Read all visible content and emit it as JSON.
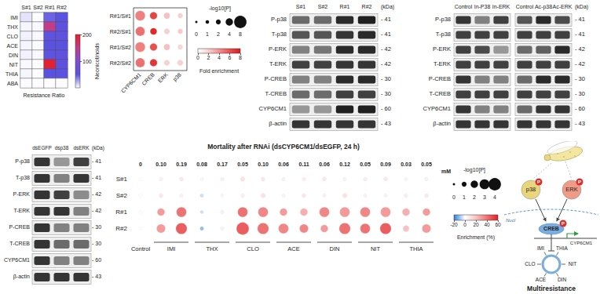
{
  "chart_data": [
    {
      "type": "heatmap",
      "columns": [
        "S#1",
        "S#2",
        "R#1",
        "R#2"
      ],
      "rows": [
        "IMI",
        "THX",
        "CLO",
        "ACE",
        "DIN",
        "NIT",
        "THIA",
        "ABA"
      ],
      "values": [
        [
          8,
          1,
          45,
          50
        ],
        [
          3,
          2,
          150,
          55
        ],
        [
          4,
          2,
          55,
          55
        ],
        [
          3,
          1,
          50,
          50
        ],
        [
          4,
          2,
          55,
          55
        ],
        [
          2,
          1,
          195,
          55
        ],
        [
          3,
          1,
          50,
          50
        ],
        [
          1,
          1,
          1,
          1
        ]
      ],
      "xlabel": "Resistance Ratio",
      "ylabel": "Neonicotinoids",
      "colorbar": {
        "lim": [
          0,
          200
        ],
        "ticks": [
          100,
          200
        ],
        "colors": [
          "#ffffff",
          "#5a52e0",
          "#7e4fd2",
          "#c23c8c",
          "#e81e28"
        ]
      }
    },
    {
      "type": "bubble",
      "x": [
        "CYP6CM1",
        "CREB",
        "ERK",
        "p38"
      ],
      "y": [
        "R#1/S#1",
        "R#2/S#1",
        "R#1/S#2",
        "R#2/S#2"
      ],
      "fold_enrichment": [
        [
          4.5,
          6.5,
          2.5,
          2
        ],
        [
          5,
          7.5,
          2,
          2.2
        ],
        [
          4.5,
          6,
          2.5,
          1.8
        ],
        [
          5,
          7,
          2,
          2
        ]
      ],
      "neg_log10_p": [
        [
          6,
          4,
          3,
          2
        ],
        [
          5.5,
          3.5,
          2.5,
          2
        ],
        [
          6,
          4,
          3,
          2
        ],
        [
          5.5,
          4,
          2.5,
          2.5
        ]
      ],
      "size_legend": {
        "title": "-log10[P]",
        "values": [
          0,
          1,
          2,
          4,
          8
        ]
      },
      "colorbar": {
        "title": "Fold enrichment",
        "lim": [
          0,
          8
        ],
        "ticks": [
          0,
          2,
          4,
          6,
          8
        ],
        "colors": [
          "#ffffff",
          "#f9d0d0",
          "#f29090",
          "#e85050",
          "#d81e1e"
        ]
      }
    },
    {
      "type": "bubble",
      "title": "Mortality after RNAi (dsCYP6CM1/dsEGFP, 24 h)",
      "x_unit": "mM",
      "groups": [
        {
          "label": "Control",
          "concentrations": [
            "0"
          ]
        },
        {
          "label": "IMI",
          "concentrations": [
            "0.10",
            "0.19"
          ]
        },
        {
          "label": "THX",
          "concentrations": [
            "0.08",
            "0.17"
          ]
        },
        {
          "label": "CLO",
          "concentrations": [
            "0.05",
            "0.10"
          ]
        },
        {
          "label": "ACE",
          "concentrations": [
            "0.06",
            "0.11"
          ]
        },
        {
          "label": "DIN",
          "concentrations": [
            "0.06",
            "0.12"
          ]
        },
        {
          "label": "NIT",
          "concentrations": [
            "0.05",
            "0.09"
          ]
        },
        {
          "label": "THIA",
          "concentrations": [
            "0.03",
            "0.05"
          ]
        }
      ],
      "series": [
        {
          "name": "S#1",
          "enrichment": [
            0,
            5,
            8,
            3,
            5,
            10,
            8,
            5,
            6,
            8,
            5,
            6,
            8,
            4,
            5
          ],
          "neg_log10_p": [
            0.3,
            0.5,
            0.6,
            0.3,
            0.5,
            0.8,
            0.6,
            0.4,
            0.5,
            0.6,
            0.4,
            0.5,
            0.6,
            0.3,
            0.4
          ]
        },
        {
          "name": "S#2",
          "enrichment": [
            0,
            8,
            5,
            -5,
            3,
            6,
            10,
            4,
            8,
            5,
            10,
            5,
            4,
            6,
            8
          ],
          "neg_log10_p": [
            0.3,
            0.6,
            0.5,
            0.5,
            0.3,
            0.6,
            0.8,
            0.4,
            0.6,
            0.4,
            0.8,
            0.4,
            0.4,
            0.5,
            0.6
          ]
        },
        {
          "name": "R#1",
          "enrichment": [
            0,
            30,
            40,
            -5,
            5,
            40,
            35,
            30,
            25,
            35,
            30,
            35,
            30,
            25,
            30
          ],
          "neg_log10_p": [
            0.3,
            2,
            3,
            0.4,
            0.5,
            3,
            3,
            2,
            2,
            3,
            3,
            3,
            3,
            2,
            2
          ]
        },
        {
          "name": "R#2",
          "enrichment": [
            0,
            30,
            45,
            -10,
            5,
            45,
            40,
            35,
            35,
            30,
            40,
            40,
            45,
            20,
            30
          ],
          "neg_log10_p": [
            0.3,
            2.5,
            3.5,
            0.6,
            0.5,
            4,
            3.5,
            3,
            2.5,
            2,
            3.5,
            3,
            3.5,
            1.5,
            2.5
          ]
        }
      ],
      "size_legend": {
        "title": "-log10[P]",
        "values": [
          0,
          1,
          2,
          3,
          4
        ]
      },
      "colorbar": {
        "title": "Enrichment (%)",
        "lim": [
          -20,
          60
        ],
        "ticks": [
          -20,
          0,
          20,
          40,
          60
        ],
        "colors": [
          "#2f7fd6",
          "#ffffff",
          "#f8c2c2",
          "#ef7272",
          "#e0202a"
        ]
      }
    }
  ],
  "blots": [
    {
      "lanes": [
        [
          "S#1",
          "S#2",
          "R#1",
          "R#2"
        ]
      ],
      "unit": "(kDa)",
      "rows": [
        {
          "label": "P-p38",
          "kda": 41,
          "intensity": [
            0.6,
            0.6,
            0.9,
            0.95
          ]
        },
        {
          "label": "T-p38",
          "kda": 41,
          "intensity": [
            0.7,
            0.7,
            0.85,
            0.9
          ]
        },
        {
          "label": "P-ERK",
          "kda": 42,
          "intensity": [
            0.5,
            0.55,
            0.9,
            0.9
          ]
        },
        {
          "label": "T-ERK",
          "kda": 42,
          "intensity": [
            0.8,
            0.8,
            0.85,
            0.85
          ]
        },
        {
          "label": "P-CREB",
          "kda": 30,
          "intensity": [
            0.5,
            0.5,
            0.9,
            0.9
          ]
        },
        {
          "label": "T-CREB",
          "kda": 30,
          "intensity": [
            0.6,
            0.6,
            0.8,
            0.8
          ]
        },
        {
          "label": "CYP6CM1",
          "kda": 60,
          "intensity": [
            0.4,
            0.4,
            0.95,
            0.95
          ]
        },
        {
          "label": "β-actin",
          "kda": 43,
          "intensity": [
            0.85,
            0.85,
            0.85,
            0.85
          ]
        }
      ]
    },
    {
      "lanes": [
        [
          "Control",
          "In-P38",
          "In-ERK"
        ],
        [
          "Control",
          "Ac-p38",
          "Ac-ERK"
        ]
      ],
      "unit": "(kDa)",
      "rows": [
        {
          "label": "P-p38",
          "kda": 41,
          "intensity": [
            0.85,
            0.5,
            0.8,
            0.7,
            0.9,
            0.75
          ]
        },
        {
          "label": "T-p38",
          "kda": 41,
          "intensity": [
            0.8,
            0.8,
            0.8,
            0.8,
            0.8,
            0.8
          ]
        },
        {
          "label": "P-ERK",
          "kda": 42,
          "intensity": [
            0.8,
            0.75,
            0.4,
            0.6,
            0.65,
            0.9
          ]
        },
        {
          "label": "T-ERK",
          "kda": 42,
          "intensity": [
            0.8,
            0.8,
            0.8,
            0.8,
            0.8,
            0.8
          ]
        },
        {
          "label": "P-CREB",
          "kda": 30,
          "intensity": [
            0.85,
            0.5,
            0.5,
            0.6,
            0.9,
            0.9
          ]
        },
        {
          "label": "T-CREB",
          "kda": 30,
          "intensity": [
            0.8,
            0.8,
            0.8,
            0.8,
            0.8,
            0.8
          ]
        },
        {
          "label": "CYP6CM1",
          "kda": 60,
          "intensity": [
            0.85,
            0.5,
            0.5,
            0.6,
            0.85,
            0.85
          ]
        },
        {
          "label": "β-actin",
          "kda": 43,
          "intensity": [
            0.85,
            0.85,
            0.85,
            0.85,
            0.85,
            0.85
          ]
        }
      ]
    },
    {
      "lanes": [
        [
          "dsEGFP",
          "dsp38",
          "dsERK"
        ]
      ],
      "unit": "(kDa)",
      "rows": [
        {
          "label": "P-p38",
          "kda": 41,
          "intensity": [
            0.85,
            0.4,
            0.8
          ]
        },
        {
          "label": "T-p38",
          "kda": 41,
          "intensity": [
            0.85,
            0.5,
            0.85
          ]
        },
        {
          "label": "P-ERK",
          "kda": 42,
          "intensity": [
            0.85,
            0.8,
            0.45
          ]
        },
        {
          "label": "T-ERK",
          "kda": 42,
          "intensity": [
            0.85,
            0.85,
            0.5
          ]
        },
        {
          "label": "P-CREB",
          "kda": 30,
          "intensity": [
            0.85,
            0.5,
            0.5
          ]
        },
        {
          "label": "T-CREB",
          "kda": 30,
          "intensity": [
            0.85,
            0.6,
            0.6
          ]
        },
        {
          "label": "CYP6CM1",
          "kda": 60,
          "intensity": [
            0.85,
            0.5,
            0.5
          ]
        },
        {
          "label": "β-actin",
          "kda": 43,
          "intensity": [
            0.85,
            0.85,
            0.85
          ]
        }
      ]
    }
  ],
  "diagram": {
    "kinases": [
      "p38",
      "ERK"
    ],
    "phospho": "P",
    "nucleus": "Nucl",
    "transcription_factor": "CREB",
    "gene": "CYP6CM1",
    "insecticides": [
      "IMI",
      "THIA",
      "NIT",
      "DIN",
      "ACE",
      "CLO"
    ],
    "caption": "Multiresistance"
  }
}
